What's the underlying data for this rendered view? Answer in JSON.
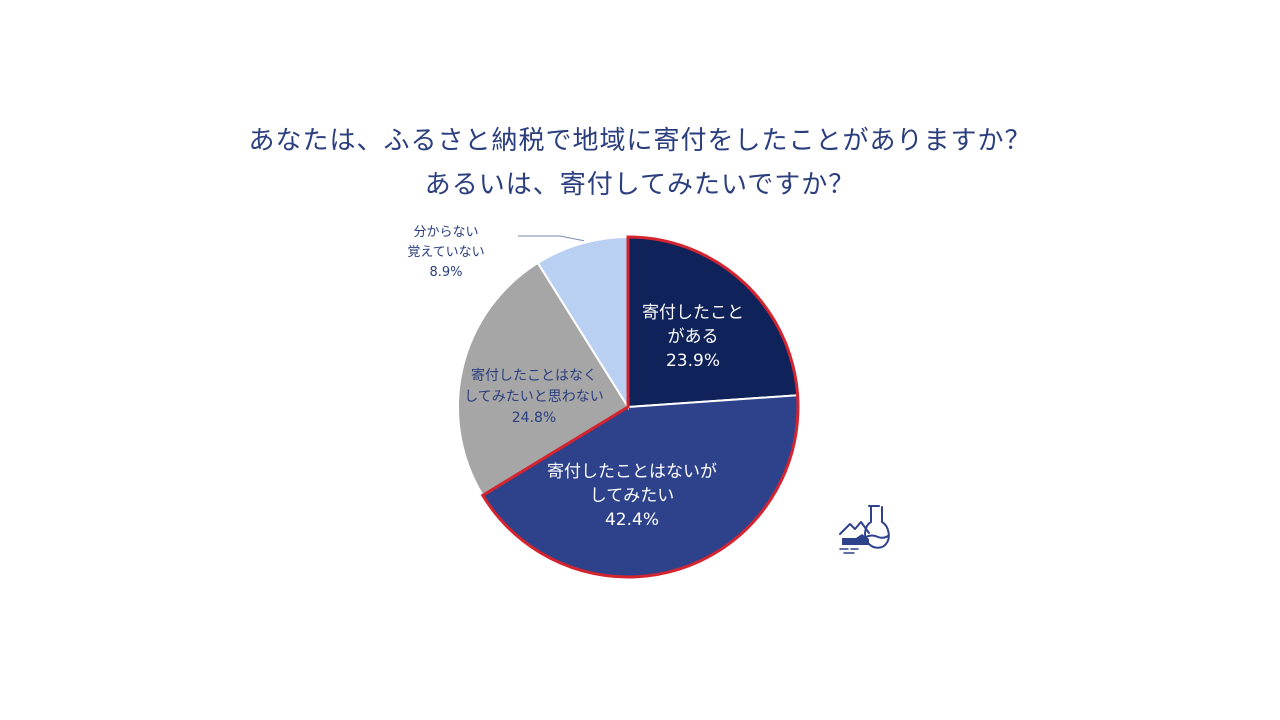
{
  "title_lines": [
    "あなたは、ふるさと納税で地域に寄付をしたことがありますか？",
    "あるいは、寄付してみたいですか？"
  ],
  "chart_data": {
    "type": "pie",
    "slices": [
      {
        "label_lines": [
          "寄付したこと",
          "がある"
        ],
        "value": 23.9,
        "value_label": "23.9%",
        "color": "#0f2259",
        "text_color": "#ffffff",
        "highlight": true
      },
      {
        "label_lines": [
          "寄付したことはないが",
          "してみたい"
        ],
        "value": 42.4,
        "value_label": "42.4%",
        "color": "#2d428a",
        "text_color": "#ffffff",
        "highlight": true
      },
      {
        "label_lines": [
          "寄付したことはなく",
          "してみたいと思わない"
        ],
        "value": 24.8,
        "value_label": "24.8%",
        "color": "#a6a6a6",
        "text_color": "#2b3e7e",
        "highlight": false
      },
      {
        "label_lines": [
          "分からない",
          "覚えていない"
        ],
        "value": 8.9,
        "value_label": "8.9%",
        "color": "#bad0f2",
        "text_color": "#2b3e7e",
        "highlight": false
      }
    ],
    "start_angle": "12 o'clock",
    "direction": "clockwise",
    "highlight_border_color": "#d42430"
  },
  "logo": {
    "icon": "landscape-flask-icon",
    "color": "#2d428a"
  }
}
